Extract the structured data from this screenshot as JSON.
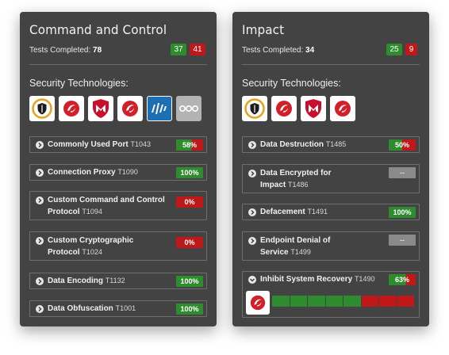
{
  "left_card": {
    "title": "Command and Control",
    "tests_label": "Tests Completed:",
    "tests_value": "78",
    "passed": "37",
    "failed": "41",
    "sec_label": "Security Technologies:",
    "logos": [
      "shield-logo-icon",
      "swirl-logo-icon",
      "mcafee-logo-icon",
      "swirl-logo-icon",
      "paloalto-logo-icon",
      "more-icon"
    ],
    "items": [
      {
        "name": "Commonly Used Port",
        "tid": "T1043",
        "badge": "58%"
      },
      {
        "name": "Connection Proxy",
        "tid": "T1090",
        "badge": "100%"
      },
      {
        "name1": "Custom Command and Control",
        "name2": "Protocol",
        "tid": "T1094",
        "badge": "0%"
      },
      {
        "name1": "Custom Cryptographic",
        "name2": "Protocol",
        "tid": "T1024",
        "badge": "0%"
      },
      {
        "name": "Data Encoding",
        "tid": "T1132",
        "badge": "100%"
      },
      {
        "name": "Data Obfuscation",
        "tid": "T1001",
        "badge": "100%"
      }
    ]
  },
  "right_card": {
    "title": "Impact",
    "tests_label": "Tests Completed:",
    "tests_value": "34",
    "passed": "25",
    "failed": "9",
    "sec_label": "Security Technologies:",
    "logos": [
      "shield-logo-icon",
      "swirl-logo-icon",
      "mcafee-logo-icon",
      "swirl-logo-icon"
    ],
    "items": [
      {
        "name": "Data Destruction",
        "tid": "T1485",
        "badge": "50%"
      },
      {
        "name1": "Data Encrypted for",
        "name2": "Impact",
        "tid": "T1486",
        "badge": "--"
      },
      {
        "name": "Defacement",
        "tid": "T1491",
        "badge": "100%"
      },
      {
        "name1": "Endpoint Denial of",
        "name2": "Service",
        "tid": "T1499",
        "badge": "--"
      },
      {
        "name": "Inhibit System Recovery",
        "tid": "T1490",
        "badge": "63%",
        "progress_segments": [
          "pass",
          "pass",
          "pass",
          "pass",
          "pass",
          "fail",
          "fail",
          "fail"
        ]
      }
    ]
  },
  "colors": {
    "card_bg": "#434343",
    "pass": "#2e8b2e",
    "fail": "#c01818",
    "na": "#8a8a8a"
  }
}
